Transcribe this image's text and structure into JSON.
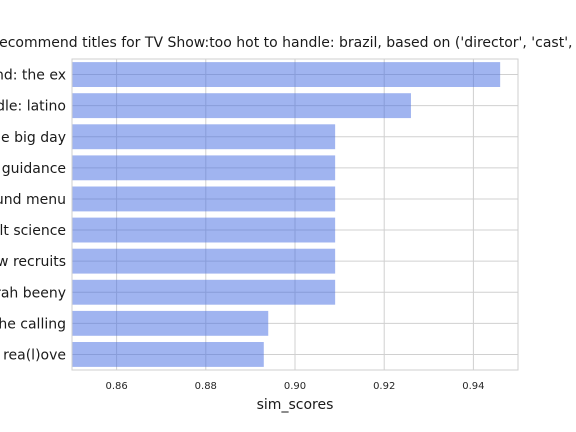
{
  "chart_data": {
    "type": "bar",
    "orientation": "horizontal",
    "title": "Recommend titles for TV Show:too hot to handle: brazil, based on ('director', 'cast', 'rating', 'listed_in', 'description')",
    "xlabel": "sim_scores",
    "ylabel": "",
    "categories": [
      "dating around: the ex",
      "too hot to handle: latino",
      "say yes to the dress: the big day",
      "spiritual guidance",
      "the surround menu",
      "secret adult science",
      "the new recruits",
      "sarah beeny",
      "the calling",
      "rea(l)ove"
    ],
    "values": [
      0.946,
      0.926,
      0.909,
      0.909,
      0.909,
      0.909,
      0.909,
      0.909,
      0.894,
      0.893
    ],
    "xlim": [
      0.85,
      0.95
    ],
    "xticks": [
      0.86,
      0.88,
      0.9,
      0.92,
      0.94
    ],
    "xtick_labels": [
      "0.86",
      "0.88",
      "0.90",
      "0.92",
      "0.94"
    ],
    "bar_color": "#4169e1",
    "grid": true
  }
}
